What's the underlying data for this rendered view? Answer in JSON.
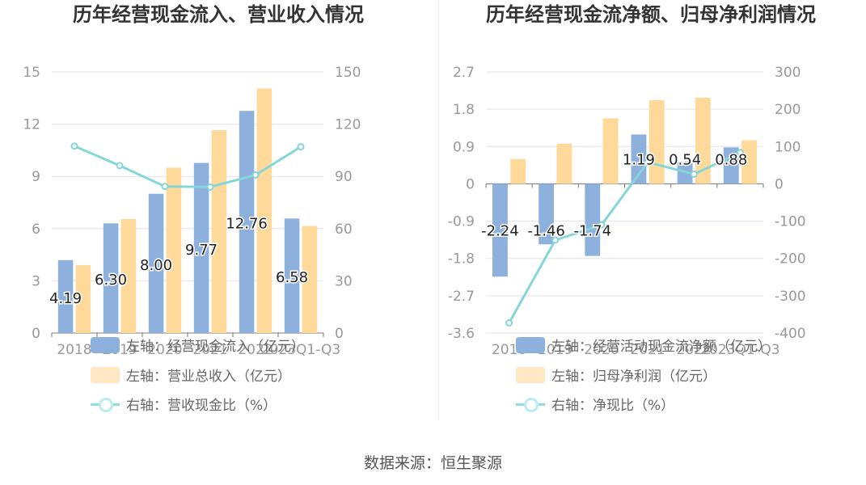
{
  "source_text": "数据来源：恒生聚源",
  "colors": {
    "bar_primary": "#8eb0dd",
    "bar_secondary": "#ffd99a",
    "line": "#85d6d8",
    "grid": "#e0e3ee",
    "axis_text": "#999999"
  },
  "chart_data": [
    {
      "type": "bar",
      "title": "历年经营现金流入、营业收入情况",
      "categories": [
        "2018",
        "2019",
        "2020",
        "2021",
        "2022",
        "2023Q1-Q3"
      ],
      "left_axis": {
        "min": 0,
        "max": 15,
        "ticks": [
          "0",
          "3",
          "6",
          "9",
          "12",
          "15"
        ]
      },
      "right_axis": {
        "min": 0,
        "max": 150,
        "ticks": [
          "0",
          "30",
          "60",
          "90",
          "120",
          "150"
        ]
      },
      "series": [
        {
          "name": "左轴：经营现金流入（亿元）",
          "type": "bar",
          "axis": "left",
          "values": [
            4.19,
            6.3,
            8.0,
            9.77,
            12.76,
            6.58
          ],
          "labels": [
            "4.19",
            "6.30",
            "8.00",
            "9.77",
            "12.76",
            "6.58"
          ]
        },
        {
          "name": "左轴：营业总收入（亿元）",
          "type": "bar",
          "axis": "left",
          "values": [
            3.9,
            6.55,
            9.5,
            11.65,
            14.05,
            6.15
          ]
        },
        {
          "name": "右轴：营收现金比（%）",
          "type": "line",
          "axis": "right",
          "values": [
            107.4,
            96.2,
            84.2,
            83.9,
            90.8,
            107.0
          ]
        }
      ]
    },
    {
      "type": "bar",
      "title": "历年经营现金流净额、归母净利润情况",
      "categories": [
        "2018",
        "2019",
        "2020",
        "2021",
        "2022",
        "2023Q1-Q3"
      ],
      "left_axis": {
        "min": -3.6,
        "max": 2.7,
        "ticks": [
          "-3.6",
          "-2.7",
          "-1.8",
          "-0.9",
          "0",
          "0.9",
          "1.8",
          "2.7"
        ]
      },
      "right_axis": {
        "min": -400,
        "max": 300,
        "ticks": [
          "-400",
          "-300",
          "-200",
          "-100",
          "0",
          "100",
          "200",
          "300"
        ]
      },
      "series": [
        {
          "name": "左轴：经营活动现金流净额（亿元）",
          "type": "bar",
          "axis": "left",
          "values": [
            -2.24,
            -1.46,
            -1.74,
            1.19,
            0.54,
            0.88
          ],
          "labels": [
            "-2.24",
            "-1.46",
            "-1.74",
            "1.19",
            "0.54",
            "0.88"
          ]
        },
        {
          "name": "左轴：归母净利润（亿元）",
          "type": "bar",
          "axis": "left",
          "values": [
            0.6,
            0.97,
            1.58,
            2.02,
            2.08,
            1.05
          ]
        },
        {
          "name": "右轴：净现比（%）",
          "type": "line",
          "axis": "right",
          "values": [
            -373,
            -151,
            -110,
            58,
            26,
            84
          ]
        }
      ]
    }
  ]
}
